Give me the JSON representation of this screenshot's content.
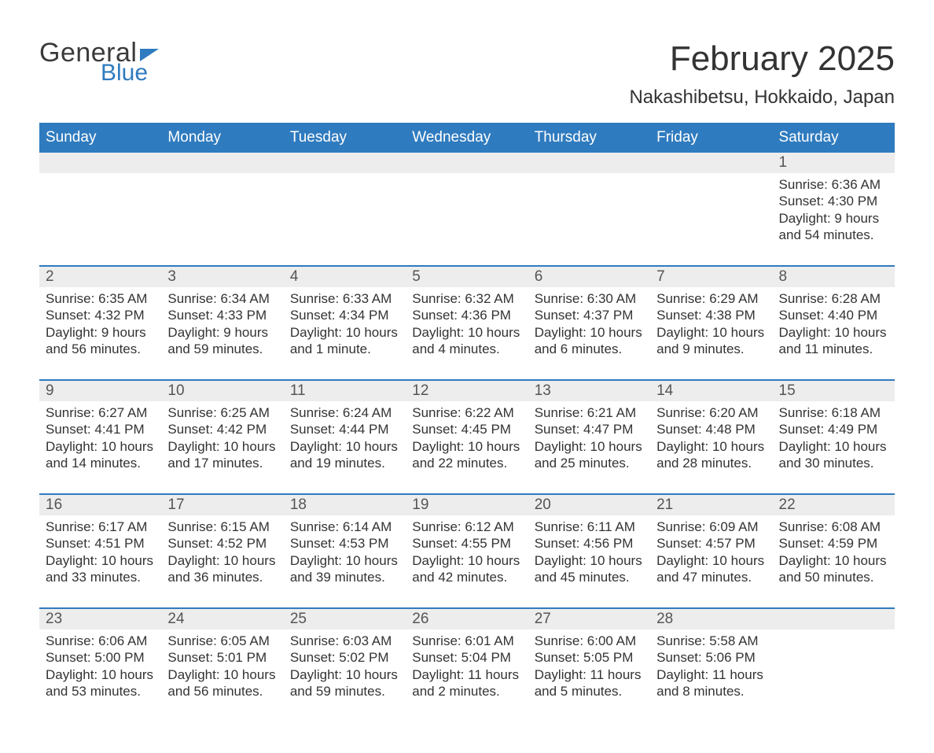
{
  "brand": {
    "general": "General",
    "blue": "Blue",
    "brand_color": "#2f7bbf"
  },
  "title": "February 2025",
  "location": "Nakashibetsu, Hokkaido, Japan",
  "colors": {
    "header_bg": "#2f7bbf",
    "header_text": "#ffffff",
    "daynum_bg": "#ededed",
    "text": "#333333",
    "border": "#2f7bbf"
  },
  "day_headers": [
    "Sunday",
    "Monday",
    "Tuesday",
    "Wednesday",
    "Thursday",
    "Friday",
    "Saturday"
  ],
  "labels": {
    "sunrise": "Sunrise:",
    "sunset": "Sunset:",
    "daylight": "Daylight:",
    "and": "and"
  },
  "weeks": [
    [
      null,
      null,
      null,
      null,
      null,
      null,
      {
        "n": "1",
        "sr": "6:36 AM",
        "ss": "4:30 PM",
        "dl1": "9 hours",
        "dl2": "54 minutes."
      }
    ],
    [
      {
        "n": "2",
        "sr": "6:35 AM",
        "ss": "4:32 PM",
        "dl1": "9 hours",
        "dl2": "56 minutes."
      },
      {
        "n": "3",
        "sr": "6:34 AM",
        "ss": "4:33 PM",
        "dl1": "9 hours",
        "dl2": "59 minutes."
      },
      {
        "n": "4",
        "sr": "6:33 AM",
        "ss": "4:34 PM",
        "dl1": "10 hours",
        "dl2": "1 minute."
      },
      {
        "n": "5",
        "sr": "6:32 AM",
        "ss": "4:36 PM",
        "dl1": "10 hours",
        "dl2": "4 minutes."
      },
      {
        "n": "6",
        "sr": "6:30 AM",
        "ss": "4:37 PM",
        "dl1": "10 hours",
        "dl2": "6 minutes."
      },
      {
        "n": "7",
        "sr": "6:29 AM",
        "ss": "4:38 PM",
        "dl1": "10 hours",
        "dl2": "9 minutes."
      },
      {
        "n": "8",
        "sr": "6:28 AM",
        "ss": "4:40 PM",
        "dl1": "10 hours",
        "dl2": "11 minutes."
      }
    ],
    [
      {
        "n": "9",
        "sr": "6:27 AM",
        "ss": "4:41 PM",
        "dl1": "10 hours",
        "dl2": "14 minutes."
      },
      {
        "n": "10",
        "sr": "6:25 AM",
        "ss": "4:42 PM",
        "dl1": "10 hours",
        "dl2": "17 minutes."
      },
      {
        "n": "11",
        "sr": "6:24 AM",
        "ss": "4:44 PM",
        "dl1": "10 hours",
        "dl2": "19 minutes."
      },
      {
        "n": "12",
        "sr": "6:22 AM",
        "ss": "4:45 PM",
        "dl1": "10 hours",
        "dl2": "22 minutes."
      },
      {
        "n": "13",
        "sr": "6:21 AM",
        "ss": "4:47 PM",
        "dl1": "10 hours",
        "dl2": "25 minutes."
      },
      {
        "n": "14",
        "sr": "6:20 AM",
        "ss": "4:48 PM",
        "dl1": "10 hours",
        "dl2": "28 minutes."
      },
      {
        "n": "15",
        "sr": "6:18 AM",
        "ss": "4:49 PM",
        "dl1": "10 hours",
        "dl2": "30 minutes."
      }
    ],
    [
      {
        "n": "16",
        "sr": "6:17 AM",
        "ss": "4:51 PM",
        "dl1": "10 hours",
        "dl2": "33 minutes."
      },
      {
        "n": "17",
        "sr": "6:15 AM",
        "ss": "4:52 PM",
        "dl1": "10 hours",
        "dl2": "36 minutes."
      },
      {
        "n": "18",
        "sr": "6:14 AM",
        "ss": "4:53 PM",
        "dl1": "10 hours",
        "dl2": "39 minutes."
      },
      {
        "n": "19",
        "sr": "6:12 AM",
        "ss": "4:55 PM",
        "dl1": "10 hours",
        "dl2": "42 minutes."
      },
      {
        "n": "20",
        "sr": "6:11 AM",
        "ss": "4:56 PM",
        "dl1": "10 hours",
        "dl2": "45 minutes."
      },
      {
        "n": "21",
        "sr": "6:09 AM",
        "ss": "4:57 PM",
        "dl1": "10 hours",
        "dl2": "47 minutes."
      },
      {
        "n": "22",
        "sr": "6:08 AM",
        "ss": "4:59 PM",
        "dl1": "10 hours",
        "dl2": "50 minutes."
      }
    ],
    [
      {
        "n": "23",
        "sr": "6:06 AM",
        "ss": "5:00 PM",
        "dl1": "10 hours",
        "dl2": "53 minutes."
      },
      {
        "n": "24",
        "sr": "6:05 AM",
        "ss": "5:01 PM",
        "dl1": "10 hours",
        "dl2": "56 minutes."
      },
      {
        "n": "25",
        "sr": "6:03 AM",
        "ss": "5:02 PM",
        "dl1": "10 hours",
        "dl2": "59 minutes."
      },
      {
        "n": "26",
        "sr": "6:01 AM",
        "ss": "5:04 PM",
        "dl1": "11 hours",
        "dl2": "2 minutes."
      },
      {
        "n": "27",
        "sr": "6:00 AM",
        "ss": "5:05 PM",
        "dl1": "11 hours",
        "dl2": "5 minutes."
      },
      {
        "n": "28",
        "sr": "5:58 AM",
        "ss": "5:06 PM",
        "dl1": "11 hours",
        "dl2": "8 minutes."
      },
      null
    ]
  ]
}
